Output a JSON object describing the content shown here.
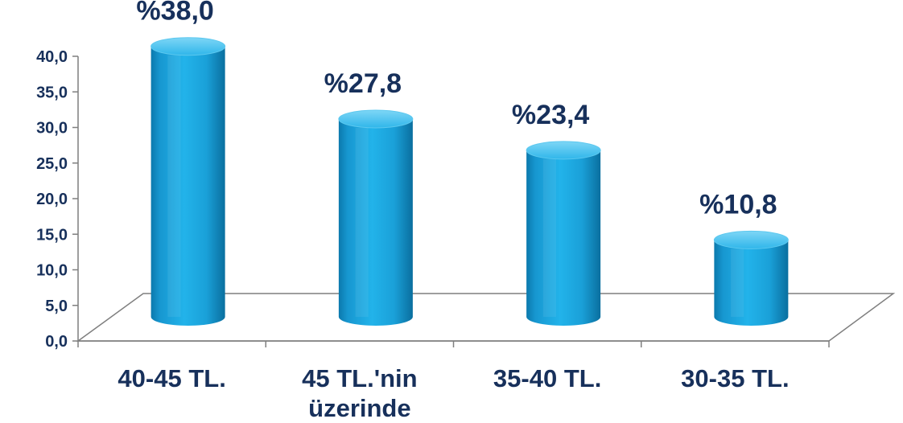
{
  "chart_data": {
    "type": "bar",
    "title": "",
    "xlabel": "",
    "ylabel": "",
    "categories": [
      [
        "40-45 TL."
      ],
      [
        "45 TL.'nin",
        "üzerinde"
      ],
      [
        "35-40 TL."
      ],
      [
        "30-35 TL."
      ]
    ],
    "values": [
      38.0,
      27.8,
      23.4,
      10.8
    ],
    "data_labels": [
      "%38,0",
      "%27,8",
      "%23,4",
      "%10,8"
    ],
    "y_ticks": [
      "0,0",
      "5,0",
      "10,0",
      "15,0",
      "20,0",
      "25,0",
      "30,0",
      "35,0",
      "40,0"
    ],
    "ylim": [
      0,
      40
    ],
    "grid": false,
    "legend": "none",
    "style": "3d-cylinder",
    "colors": {
      "bar": "#1ba6de",
      "bar_dark": "#0a6f9f",
      "bar_light": "#8fdcf7",
      "text": "#17305b",
      "axis": "#7f7f7f"
    }
  }
}
